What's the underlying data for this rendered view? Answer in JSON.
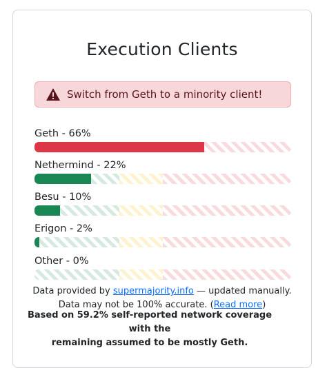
{
  "card": {
    "title": "Execution Clients"
  },
  "alert": {
    "icon": "warning-triangle-icon",
    "message": "Switch from Geth to a minority client!"
  },
  "clients": [
    {
      "label": "Geth - 66%",
      "percent": 66,
      "color": "#dc3545"
    },
    {
      "label": "Nethermind - 22%",
      "percent": 22,
      "color": "#198754"
    },
    {
      "label": "Besu - 10%",
      "percent": 10,
      "color": "#198754"
    },
    {
      "label": "Erigon - 2%",
      "percent": 2,
      "color": "#198754"
    },
    {
      "label": "Other - 0%",
      "percent": 0,
      "color": "#198754"
    }
  ],
  "threshold_zones": [
    {
      "name": "safe",
      "color": "#198754",
      "upto_percent": 33
    },
    {
      "name": "warning",
      "color": "#ffc107",
      "upto_percent": 50
    },
    {
      "name": "danger",
      "color": "#dc3545",
      "upto_percent": 100
    }
  ],
  "info": {
    "line1_prefix": "Data provided by ",
    "line1_link": "supermajority.info",
    "line1_suffix": " — updated manually.",
    "line2_prefix": "Data may not be 100% accurate. (",
    "line2_link": "Read more",
    "line2_suffix": ")"
  },
  "footnote": {
    "line1": "Based on 59.2% self-reported network coverage with the",
    "line2": "remaining assumed to be mostly Geth."
  }
}
